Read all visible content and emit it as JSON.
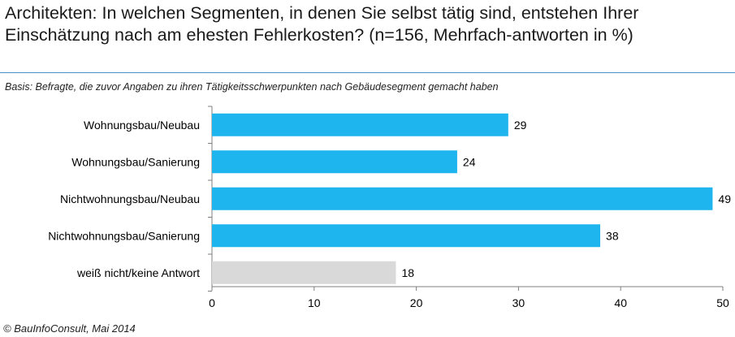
{
  "title": "Architekten: In welchen Segmenten, in denen Sie selbst tätig sind, entstehen Ihrer Einschätzung nach am ehesten Fehlerkosten? (n=156, Mehrfach-antworten in %)",
  "basis": "Basis: Befragte, die zuvor Angaben zu ihren Tätigkeitsschwerpunkten nach Gebäudesegment gemacht haben",
  "source": "© BauInfoConsult, Mai 2014",
  "colors": {
    "bar": "#1eb4ee",
    "bar_neutral": "#d9d9d9",
    "title_rule": "#4a8fc4"
  },
  "chart_data": {
    "type": "bar",
    "orientation": "horizontal",
    "categories": [
      "Wohnungsbau/Neubau",
      "Wohnungsbau/Sanierung",
      "Nichtwohnungsbau/Neubau",
      "Nichtwohnungsbau/Sanierung",
      "weiß nicht/keine Antwort"
    ],
    "values": [
      29,
      24,
      49,
      38,
      18
    ],
    "value_labels": [
      "29",
      "24",
      "49",
      "38",
      "18"
    ],
    "xticks": [
      "0",
      "10",
      "20",
      "30",
      "40",
      "50"
    ],
    "xlim": [
      0,
      50
    ],
    "grid": false
  }
}
